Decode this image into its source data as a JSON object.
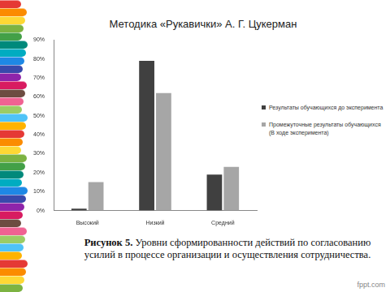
{
  "chart_data": {
    "type": "bar",
    "title": "Методика «Рукавички» А. Г. Цукерман",
    "categories": [
      "Высокий",
      "Низкий",
      "Средний"
    ],
    "series": [
      {
        "name": "Результаты обучающихся до эксперимента",
        "color": "#404040",
        "values": [
          1,
          79,
          19
        ]
      },
      {
        "name": "Промежуточные результаты обучающихся (В ходе эксперимента)",
        "color": "#a6a6a6",
        "values": [
          15,
          62,
          23
        ]
      }
    ],
    "ylim": [
      0,
      90
    ],
    "yticks": [
      {
        "value": 0,
        "label": "0%"
      },
      {
        "value": 10,
        "label": "10%"
      },
      {
        "value": 20,
        "label": "20%"
      },
      {
        "value": 30,
        "label": "30%"
      },
      {
        "value": 40,
        "label": "40%"
      },
      {
        "value": 50,
        "label": "50%"
      },
      {
        "value": 60,
        "label": "60%"
      },
      {
        "value": 70,
        "label": "70%"
      },
      {
        "value": 80,
        "label": "80%"
      },
      {
        "value": 90,
        "label": "90%"
      }
    ],
    "grid": false,
    "legend": "right"
  },
  "caption": {
    "label": "Рисунок 5.",
    "text": "Уровни сформированности действий по согласованию усилий в процессе организации и осуществления сотрудничества."
  },
  "footer": "fppt.com"
}
